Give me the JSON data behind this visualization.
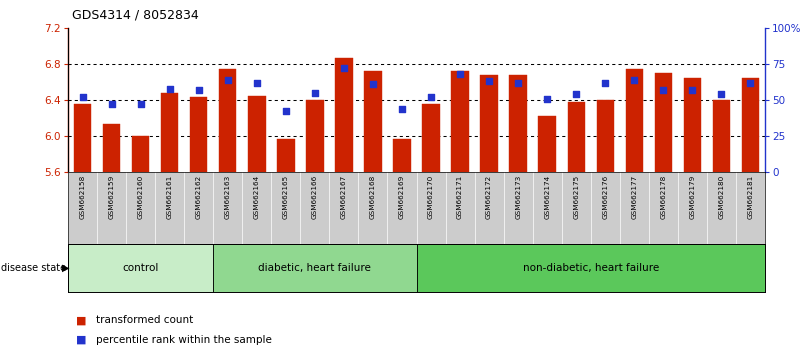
{
  "title": "GDS4314 / 8052834",
  "samples": [
    "GSM662158",
    "GSM662159",
    "GSM662160",
    "GSM662161",
    "GSM662162",
    "GSM662163",
    "GSM662164",
    "GSM662165",
    "GSM662166",
    "GSM662167",
    "GSM662168",
    "GSM662169",
    "GSM662170",
    "GSM662171",
    "GSM662172",
    "GSM662173",
    "GSM662174",
    "GSM662175",
    "GSM662176",
    "GSM662177",
    "GSM662178",
    "GSM662179",
    "GSM662180",
    "GSM662181"
  ],
  "bar_values": [
    6.35,
    6.13,
    6.0,
    6.48,
    6.43,
    6.75,
    6.45,
    5.97,
    6.4,
    6.87,
    6.72,
    5.96,
    6.36,
    6.72,
    6.68,
    6.68,
    6.22,
    6.38,
    6.4,
    6.75,
    6.7,
    6.65,
    6.4,
    6.65
  ],
  "percentile_values": [
    52,
    47,
    47,
    58,
    57,
    64,
    62,
    42,
    55,
    72,
    61,
    44,
    52,
    68,
    63,
    62,
    51,
    54,
    62,
    64,
    57,
    57,
    54,
    62
  ],
  "groups": [
    {
      "label": "control",
      "start": 0,
      "end": 5,
      "color": "#c8edc8"
    },
    {
      "label": "diabetic, heart failure",
      "start": 5,
      "end": 12,
      "color": "#90d890"
    },
    {
      "label": "non-diabetic, heart failure",
      "start": 12,
      "end": 24,
      "color": "#5bc85b"
    }
  ],
  "ylim_left": [
    5.6,
    7.2
  ],
  "ylim_right": [
    0,
    100
  ],
  "yticks_left": [
    5.6,
    6.0,
    6.4,
    6.8,
    7.2
  ],
  "yticks_right": [
    0,
    25,
    50,
    75,
    100
  ],
  "ytick_labels_right": [
    "0",
    "25",
    "50",
    "75",
    "100%"
  ],
  "bar_color": "#cc2200",
  "dot_color": "#2233cc",
  "bar_bottom": 5.6,
  "bg": "#ffffff",
  "xtick_bg": "#cccccc"
}
